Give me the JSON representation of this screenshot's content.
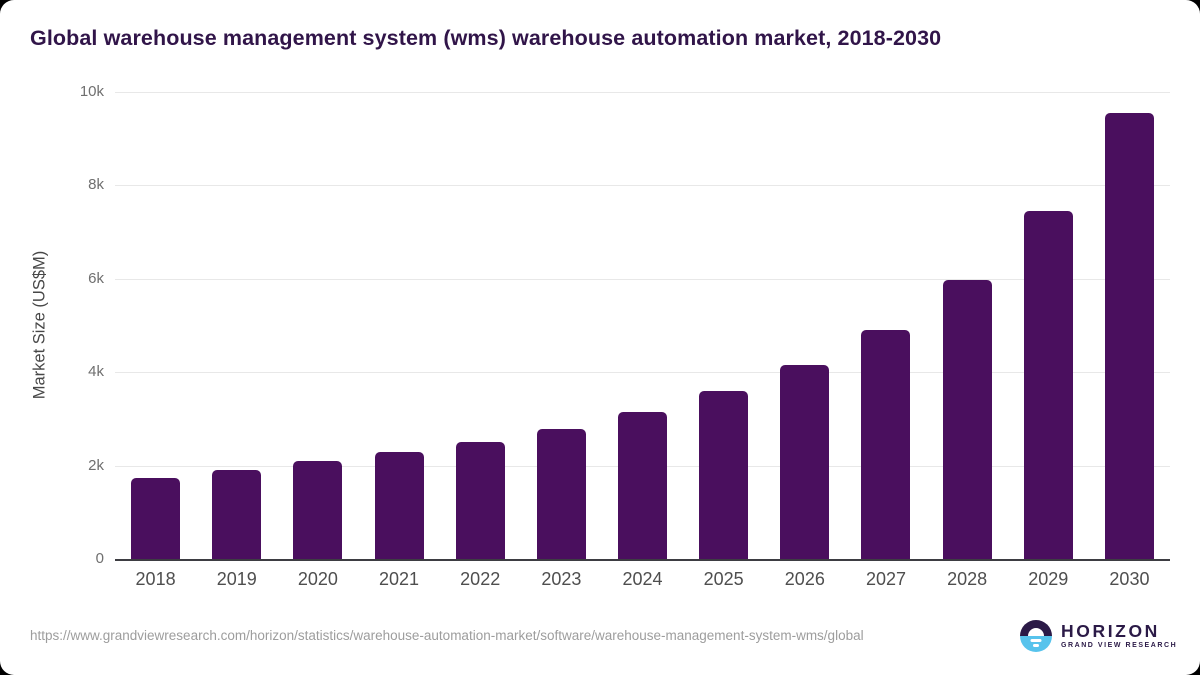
{
  "title": "Global warehouse management system (wms) warehouse automation market, 2018-2030",
  "chart_data": {
    "type": "bar",
    "title": "Global warehouse management system (wms) warehouse automation market, 2018-2030",
    "categories": [
      "2018",
      "2019",
      "2020",
      "2021",
      "2022",
      "2023",
      "2024",
      "2025",
      "2026",
      "2027",
      "2028",
      "2029",
      "2030"
    ],
    "values": [
      1730,
      1900,
      2100,
      2290,
      2510,
      2790,
      3140,
      3590,
      4160,
      4910,
      5980,
      7450,
      9560
    ],
    "xlabel": "",
    "ylabel": "Market Size (US$M)",
    "ylim": [
      0,
      10000
    ],
    "yticks": [
      {
        "value": 0,
        "label": "0"
      },
      {
        "value": 2000,
        "label": "2k"
      },
      {
        "value": 4000,
        "label": "4k"
      },
      {
        "value": 6000,
        "label": "6k"
      },
      {
        "value": 8000,
        "label": "8k"
      },
      {
        "value": 10000,
        "label": "10k"
      }
    ],
    "grid": true,
    "legend": false
  },
  "footer": {
    "source_url": "https://www.grandviewresearch.com/horizon/statistics/warehouse-automation-market/software/warehouse-management-system-wms/global",
    "logo": {
      "brand": "HORIZON",
      "sub_brand": "GRAND VIEW RESEARCH"
    }
  },
  "colors": {
    "bar": "#4A0F5E",
    "title_text": "#311549",
    "logo_dark": "#2B1A47",
    "logo_blue": "#57C3EC",
    "gridline": "#e8e8e8",
    "axis_line": "#3d3d42",
    "tick_text": "#6f6f6f",
    "url_text": "#9d9d9d"
  }
}
